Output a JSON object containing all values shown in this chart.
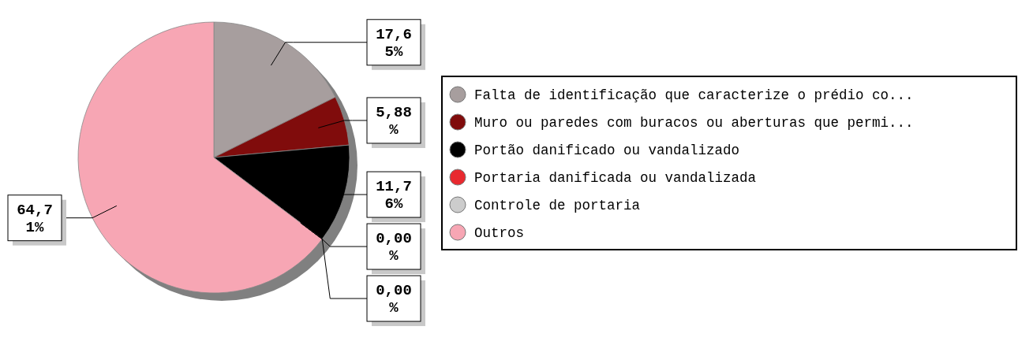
{
  "chart_data": {
    "type": "pie",
    "categories": [
      "Falta de identificação que caracterize o prédio co...",
      "Muro ou paredes com buracos ou aberturas que permi...",
      "Portão danificado ou vandalizado",
      "Portaria danificada ou vandalizada",
      "Controle de portaria",
      "Outros"
    ],
    "values": [
      17.65,
      5.88,
      11.76,
      0,
      0,
      64.71
    ],
    "value_labels": [
      "17,65%",
      "5,88%",
      "11,76%",
      "0,00%",
      "0,00%",
      "64,71%"
    ],
    "colors": [
      "#a79e9e",
      "#800c0c",
      "#000000",
      "#e8292f",
      "#cccccc",
      "#f7a6b4"
    ],
    "legend": "right"
  }
}
